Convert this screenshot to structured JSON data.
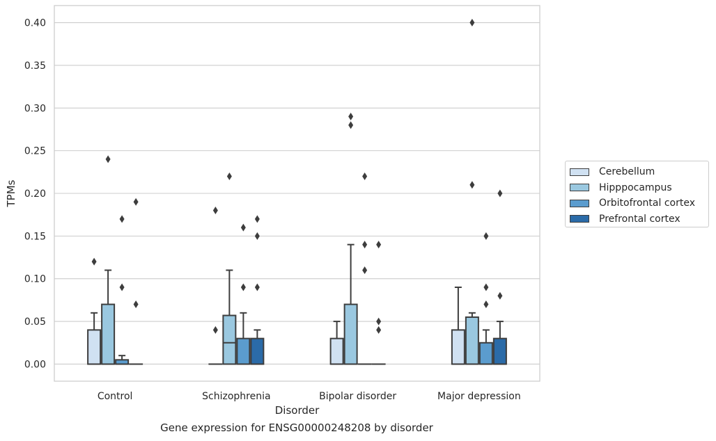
{
  "caption": "Gene expression for ENSG00000248208 by disorder",
  "chart_data": {
    "type": "box",
    "title": "",
    "xlabel": "Disorder",
    "ylabel": "TPMs",
    "ylim": [
      -0.02,
      0.42
    ],
    "yticks": [
      "0.00",
      "0.05",
      "0.10",
      "0.15",
      "0.20",
      "0.25",
      "0.30",
      "0.35",
      "0.40"
    ],
    "grid": "horizontal",
    "legend_position": "right",
    "categories": [
      "Control",
      "Schizophrenia",
      "Bipolar disorder",
      "Major depression"
    ],
    "series": [
      {
        "name": "Cerebellum",
        "color": "#d0e1f2",
        "boxes": [
          {
            "q1": 0.0,
            "median": 0.0,
            "q3": 0.04,
            "whisker_low": 0.0,
            "whisker_high": 0.06,
            "outliers": [
              0.12
            ]
          },
          {
            "q1": 0.0,
            "median": 0.0,
            "q3": 0.0,
            "whisker_low": 0.0,
            "whisker_high": 0.0,
            "outliers": [
              0.04,
              0.18
            ]
          },
          {
            "q1": 0.0,
            "median": 0.0,
            "q3": 0.03,
            "whisker_low": 0.0,
            "whisker_high": 0.05,
            "outliers": []
          },
          {
            "q1": 0.0,
            "median": 0.0,
            "q3": 0.04,
            "whisker_low": 0.0,
            "whisker_high": 0.09,
            "outliers": []
          }
        ]
      },
      {
        "name": "Hipppocampus",
        "color": "#9ac8e0",
        "boxes": [
          {
            "q1": 0.0,
            "median": 0.0,
            "q3": 0.07,
            "whisker_low": 0.0,
            "whisker_high": 0.11,
            "outliers": [
              0.24
            ]
          },
          {
            "q1": 0.0,
            "median": 0.025,
            "q3": 0.057,
            "whisker_low": 0.0,
            "whisker_high": 0.11,
            "outliers": [
              0.22
            ]
          },
          {
            "q1": 0.0,
            "median": 0.0,
            "q3": 0.07,
            "whisker_low": 0.0,
            "whisker_high": 0.14,
            "outliers": [
              0.28,
              0.29
            ]
          },
          {
            "q1": 0.0,
            "median": 0.0,
            "q3": 0.055,
            "whisker_low": 0.0,
            "whisker_high": 0.06,
            "outliers": [
              0.21,
              0.4
            ]
          }
        ]
      },
      {
        "name": "Orbitofrontal cortex",
        "color": "#5b9cce",
        "boxes": [
          {
            "q1": 0.0,
            "median": 0.0,
            "q3": 0.005,
            "whisker_low": 0.0,
            "whisker_high": 0.01,
            "outliers": [
              0.09,
              0.17
            ]
          },
          {
            "q1": 0.0,
            "median": 0.0,
            "q3": 0.03,
            "whisker_low": 0.0,
            "whisker_high": 0.06,
            "outliers": [
              0.09,
              0.16
            ]
          },
          {
            "q1": 0.0,
            "median": 0.0,
            "q3": 0.0,
            "whisker_low": 0.0,
            "whisker_high": 0.0,
            "outliers": [
              0.11,
              0.14,
              0.22
            ]
          },
          {
            "q1": 0.0,
            "median": 0.0,
            "q3": 0.025,
            "whisker_low": 0.0,
            "whisker_high": 0.04,
            "outliers": [
              0.07,
              0.09,
              0.15
            ]
          }
        ]
      },
      {
        "name": "Prefrontal cortex",
        "color": "#2b6ba8",
        "boxes": [
          {
            "q1": 0.0,
            "median": 0.0,
            "q3": 0.0,
            "whisker_low": 0.0,
            "whisker_high": 0.0,
            "outliers": [
              0.07,
              0.19
            ]
          },
          {
            "q1": 0.0,
            "median": 0.0,
            "q3": 0.03,
            "whisker_low": 0.0,
            "whisker_high": 0.04,
            "outliers": [
              0.09,
              0.15,
              0.17
            ]
          },
          {
            "q1": 0.0,
            "median": 0.0,
            "q3": 0.0,
            "whisker_low": 0.0,
            "whisker_high": 0.0,
            "outliers": [
              0.04,
              0.05,
              0.14
            ]
          },
          {
            "q1": 0.0,
            "median": 0.0,
            "q3": 0.03,
            "whisker_low": 0.0,
            "whisker_high": 0.05,
            "outliers": [
              0.08,
              0.2
            ]
          }
        ]
      }
    ]
  }
}
